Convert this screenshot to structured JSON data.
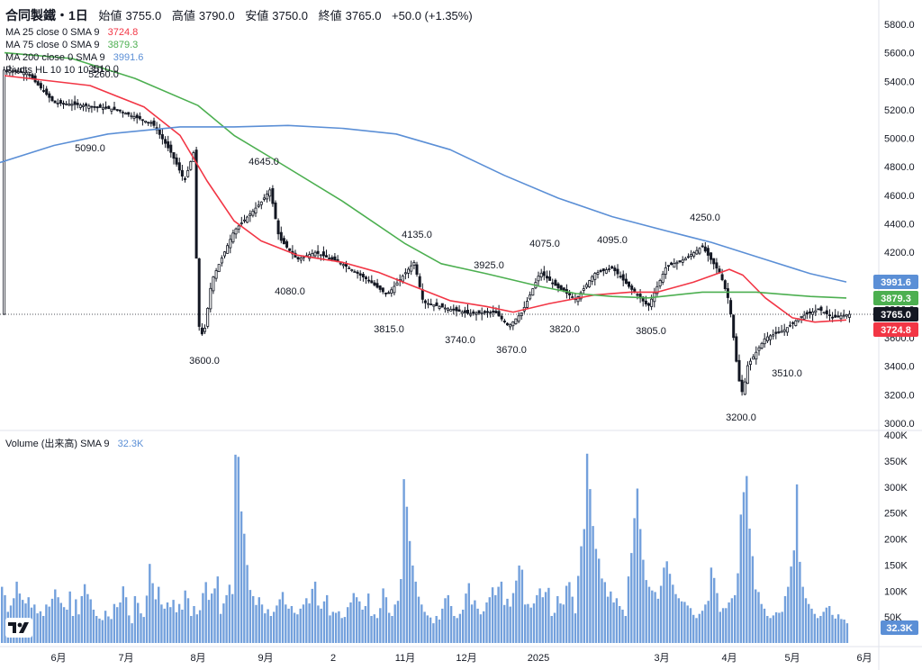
{
  "header": {
    "symbol": "合同製鐵・1日",
    "open_label": "始値",
    "open": "3755.0",
    "high_label": "高値",
    "high": "3790.0",
    "low_label": "安値",
    "low": "3750.0",
    "close_label": "終値",
    "close": "3765.0",
    "change": "+50.0 (+1.35%)"
  },
  "indicators": {
    "ma25": {
      "label": "MA 25 close 0 SMA 9",
      "value": "3724.8",
      "color": "#f23645"
    },
    "ma75": {
      "label": "MA 75 close 0 SMA 9",
      "value": "3879.3",
      "color": "#4caf50"
    },
    "ma200": {
      "label": "MA 200 close 0 SMA 9",
      "value": "3991.6",
      "color": "#5b8fd6"
    },
    "pivots": {
      "label": "Pivots HL 10 10 10 10"
    },
    "volume": {
      "label": "Volume (出来高) SMA 9",
      "value": "32.3K",
      "color": "#5b8fd6"
    }
  },
  "price_axis": {
    "ticks": [
      "5800.0",
      "5600.0",
      "5400.0",
      "5200.0",
      "5000.0",
      "4800.0",
      "4600.0",
      "4400.0",
      "4200.0",
      "4000.0",
      "3800.0",
      "3600.0",
      "3400.0",
      "3200.0",
      "3000.0"
    ],
    "tags": [
      {
        "value": "3991.6",
        "color": "#5b8fd6"
      },
      {
        "value": "3879.3",
        "color": "#4caf50"
      },
      {
        "value": "3765.0",
        "color": "#131722"
      },
      {
        "value": "3724.8",
        "color": "#f23645"
      }
    ]
  },
  "volume_axis": {
    "ticks": [
      "400K",
      "350K",
      "300K",
      "250K",
      "200K",
      "150K",
      "100K",
      "50K"
    ],
    "tag": "32.3K"
  },
  "time_axis": [
    "6月",
    "7月",
    "8月",
    "9月",
    "2",
    "11月",
    "12月",
    "2025",
    "3月",
    "4月",
    "5月",
    "6月"
  ],
  "pivot_labels": [
    "5260.0",
    "3510.0",
    "5090.0",
    "4645.0",
    "3600.0",
    "4080.0",
    "4135.0",
    "3815.0",
    "3925.0",
    "3740.0",
    "4075.0",
    "3670.0",
    "3820.0",
    "4095.0",
    "3805.0",
    "4250.0",
    "3510.0",
    "3200.0"
  ],
  "chart_data": {
    "type": "candlestick",
    "title": "合同製鐵・1日",
    "price_range": [
      3000,
      5800
    ],
    "volume_range": [
      0,
      400000
    ],
    "last": {
      "open": 3755.0,
      "high": 3790.0,
      "low": 3750.0,
      "close": 3765.0,
      "change": 50.0,
      "change_pct": 1.35
    },
    "moving_averages": [
      {
        "name": "MA 25",
        "last": 3724.8,
        "color": "#f23645",
        "points": [
          [
            5,
            5440
          ],
          [
            100,
            5370
          ],
          [
            160,
            5220
          ],
          [
            200,
            5020
          ],
          [
            230,
            4700
          ],
          [
            260,
            4420
          ],
          [
            290,
            4280
          ],
          [
            330,
            4180
          ],
          [
            380,
            4130
          ],
          [
            420,
            4060
          ],
          [
            460,
            3960
          ],
          [
            500,
            3860
          ],
          [
            540,
            3820
          ],
          [
            570,
            3780
          ],
          [
            610,
            3840
          ],
          [
            660,
            3900
          ],
          [
            700,
            3920
          ],
          [
            730,
            3920
          ],
          [
            770,
            3990
          ],
          [
            810,
            4080
          ],
          [
            825,
            4040
          ],
          [
            850,
            3880
          ],
          [
            880,
            3740
          ],
          [
            905,
            3710
          ],
          [
            940,
            3725
          ]
        ]
      },
      {
        "name": "MA 75",
        "last": 3879.3,
        "color": "#4caf50",
        "points": [
          [
            5,
            5600
          ],
          [
            80,
            5560
          ],
          [
            150,
            5420
          ],
          [
            220,
            5230
          ],
          [
            260,
            5020
          ],
          [
            310,
            4830
          ],
          [
            380,
            4560
          ],
          [
            450,
            4260
          ],
          [
            490,
            4120
          ],
          [
            540,
            4050
          ],
          [
            600,
            3960
          ],
          [
            640,
            3910
          ],
          [
            680,
            3890
          ],
          [
            720,
            3880
          ],
          [
            780,
            3920
          ],
          [
            840,
            3920
          ],
          [
            900,
            3890
          ],
          [
            940,
            3879
          ]
        ]
      },
      {
        "name": "MA 200",
        "last": 3991.6,
        "color": "#5b8fd6",
        "points": [
          [
            0,
            4830
          ],
          [
            60,
            4950
          ],
          [
            120,
            5030
          ],
          [
            200,
            5080
          ],
          [
            260,
            5080
          ],
          [
            320,
            5090
          ],
          [
            380,
            5070
          ],
          [
            440,
            5030
          ],
          [
            500,
            4920
          ],
          [
            560,
            4740
          ],
          [
            620,
            4580
          ],
          [
            680,
            4450
          ],
          [
            740,
            4350
          ],
          [
            790,
            4270
          ],
          [
            850,
            4150
          ],
          [
            900,
            4050
          ],
          [
            940,
            3992
          ]
        ]
      }
    ],
    "pivots": [
      {
        "label": "5260.0",
        "type": "high"
      },
      {
        "label": "3510.0",
        "type": "high"
      },
      {
        "label": "5090.0",
        "type": "low"
      },
      {
        "label": "4645.0",
        "type": "high"
      },
      {
        "label": "3600.0",
        "type": "low"
      },
      {
        "label": "4080.0",
        "type": "low"
      },
      {
        "label": "4135.0",
        "type": "high"
      },
      {
        "label": "3815.0",
        "type": "low"
      },
      {
        "label": "3925.0",
        "type": "high"
      },
      {
        "label": "3740.0",
        "type": "low"
      },
      {
        "label": "4075.0",
        "type": "high"
      },
      {
        "label": "3670.0",
        "type": "low"
      },
      {
        "label": "3820.0",
        "type": "low"
      },
      {
        "label": "4095.0",
        "type": "high"
      },
      {
        "label": "3805.0",
        "type": "low"
      },
      {
        "label": "4250.0",
        "type": "high"
      },
      {
        "label": "3510.0",
        "type": "high"
      },
      {
        "label": "3200.0",
        "type": "low"
      }
    ],
    "price_path": [
      [
        3,
        5480
      ],
      [
        30,
        5460
      ],
      [
        60,
        5250
      ],
      [
        95,
        5230
      ],
      [
        130,
        5200
      ],
      [
        150,
        5150
      ],
      [
        170,
        5100
      ],
      [
        190,
        4900
      ],
      [
        205,
        4700
      ],
      [
        215,
        4900
      ],
      [
        220,
        3700
      ],
      [
        226,
        3600
      ],
      [
        235,
        4000
      ],
      [
        260,
        4350
      ],
      [
        290,
        4550
      ],
      [
        300,
        4640
      ],
      [
        310,
        4300
      ],
      [
        330,
        4150
      ],
      [
        350,
        4200
      ],
      [
        380,
        4120
      ],
      [
        410,
        4000
      ],
      [
        430,
        3900
      ],
      [
        460,
        4130
      ],
      [
        470,
        3850
      ],
      [
        500,
        3800
      ],
      [
        520,
        3770
      ],
      [
        550,
        3780
      ],
      [
        565,
        3680
      ],
      [
        580,
        3780
      ],
      [
        600,
        4060
      ],
      [
        620,
        3950
      ],
      [
        640,
        3870
      ],
      [
        660,
        4050
      ],
      [
        680,
        4090
      ],
      [
        700,
        3950
      ],
      [
        720,
        3820
      ],
      [
        740,
        4100
      ],
      [
        760,
        4150
      ],
      [
        780,
        4240
      ],
      [
        800,
        4050
      ],
      [
        810,
        3850
      ],
      [
        820,
        3320
      ],
      [
        825,
        3200
      ],
      [
        830,
        3400
      ],
      [
        850,
        3600
      ],
      [
        870,
        3650
      ],
      [
        890,
        3750
      ],
      [
        910,
        3800
      ],
      [
        925,
        3740
      ],
      [
        942,
        3765
      ]
    ],
    "volume": [
      108000,
      92000,
      60000,
      72000,
      86000,
      118000,
      95000,
      83000,
      76000,
      88000,
      68000,
      74000,
      57000,
      61000,
      52000,
      74000,
      70000,
      85000,
      103000,
      88000,
      77000,
      69000,
      64000,
      99000,
      52000,
      84000,
      55000,
      90000,
      113000,
      94000,
      84000,
      64000,
      52000,
      47000,
      44000,
      62000,
      51000,
      46000,
      75000,
      69000,
      78000,
      109000,
      88000,
      53000,
      38000,
      90000,
      77000,
      57000,
      50000,
      91000,
      152000,
      115000,
      84000,
      108000,
      74000,
      66000,
      78000,
      69000,
      83000,
      59000,
      75000,
      64000,
      101000,
      86000,
      52000,
      71000,
      55000,
      63000,
      96000,
      117000,
      83000,
      95000,
      105000,
      128000,
      56000,
      76000,
      92000,
      112000,
      94000,
      362000,
      358000,
      253000,
      210000,
      150000,
      102000,
      90000,
      73000,
      88000,
      74000,
      57000,
      65000,
      52000,
      60000,
      72000,
      84000,
      98000,
      74000,
      66000,
      71000,
      58000,
      55000,
      66000,
      74000,
      86000,
      76000,
      104000,
      118000,
      72000,
      66000,
      80000,
      92000,
      53000,
      60000,
      58000,
      61000,
      48000,
      50000,
      69000,
      78000,
      96000,
      88000,
      80000,
      64000,
      71000,
      95000,
      52000,
      55000,
      48000,
      67000,
      105000,
      88000,
      58000,
      52000,
      74000,
      81000,
      123000,
      315000,
      262000,
      196000,
      149000,
      118000,
      89000,
      74000,
      60000,
      53000,
      49000,
      38000,
      52000,
      45000,
      66000,
      86000,
      92000,
      71000,
      52000,
      48000,
      56000,
      64000,
      95000,
      115000,
      74000,
      82000,
      66000,
      55000,
      61000,
      78000,
      88000,
      107000,
      92000,
      108000,
      118000,
      73000,
      85000,
      70000,
      96000,
      120000,
      149000,
      141000,
      74000,
      75000,
      68000,
      76000,
      92000,
      105000,
      88000,
      98000,
      106000,
      52000,
      58000,
      90000,
      76000,
      74000,
      110000,
      117000,
      89000,
      57000,
      129000,
      186000,
      219000,
      364000,
      296000,
      225000,
      181000,
      162000,
      124000,
      117000,
      89000,
      99000,
      78000,
      86000,
      71000,
      64000,
      52000,
      128000,
      173000,
      240000,
      297000,
      219000,
      160000,
      121000,
      108000,
      101000,
      98000,
      85000,
      110000,
      145000,
      157000,
      133000,
      112000,
      94000,
      86000,
      80000,
      79000,
      72000,
      67000,
      54000,
      48000,
      56000,
      62000,
      74000,
      81000,
      145000,
      125000,
      96000,
      60000,
      67000,
      67000,
      78000,
      86000,
      92000,
      134000,
      247000,
      290000,
      321000,
      220000,
      167000,
      103000,
      98000,
      75000,
      66000,
      52000,
      48000,
      53000,
      59000,
      58000,
      60000,
      90000,
      108000,
      147000,
      178000,
      305000,
      156000,
      108000,
      86000,
      75000,
      66000,
      56000,
      48000,
      52000,
      60000,
      68000,
      71000,
      54000,
      47000,
      55000,
      46000,
      45000,
      38000
    ]
  }
}
